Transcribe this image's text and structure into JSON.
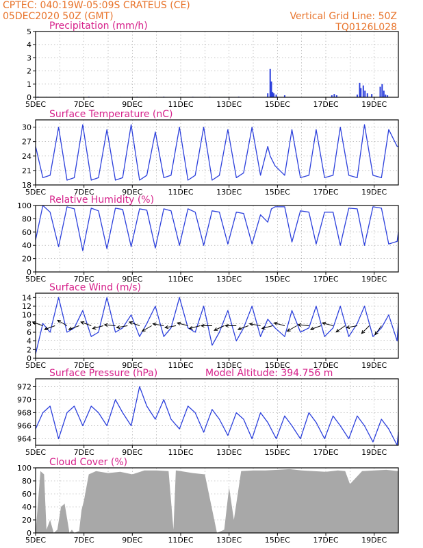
{
  "header": {
    "line1_left": "CPTEC:   040:19W-05:09S   CRATEUS (CE)",
    "line2_left": "05DEC2020 50Z (GMT)",
    "line1_right": "Vertical Grid Line: 50Z",
    "line2_right": "TQ0126L028"
  },
  "colors": {
    "header": "#e8732a",
    "titles": "#d6208a",
    "series": "#2b3fdc",
    "cloud": "#a8a8a8",
    "arrows": "#000000"
  },
  "chart_data": [
    {
      "type": "bar",
      "title": "Precipitation (mm/h)",
      "ylim": [
        0,
        5
      ],
      "yticks": [
        0,
        1,
        2,
        3,
        4,
        5
      ],
      "x_days": [
        0.1,
        0.45,
        1.0,
        1.6,
        2.2,
        2.8,
        3.5,
        4.2,
        4.7,
        5.3,
        5.9,
        6.5,
        7.2,
        7.8,
        8.4,
        9.0,
        9.6,
        9.7,
        9.75,
        9.8,
        9.85,
        9.95,
        10.3,
        12.25,
        12.35,
        12.45,
        13.3,
        13.4,
        13.45,
        13.55,
        13.62,
        13.72,
        13.9,
        14.25,
        14.33,
        14.4,
        14.47,
        14.55
      ],
      "values": [
        0.05,
        0.03,
        0.03,
        0.02,
        0.05,
        0.04,
        0.03,
        0.04,
        0.03,
        0.05,
        0.03,
        0.04,
        0.04,
        0.03,
        0.05,
        0.04,
        0.3,
        2.15,
        1.2,
        0.4,
        0.3,
        0.2,
        0.15,
        0.15,
        0.25,
        0.15,
        0.2,
        1.1,
        0.7,
        0.9,
        0.5,
        0.3,
        0.25,
        0.8,
        1.0,
        0.5,
        0.2,
        0.15
      ]
    },
    {
      "type": "line",
      "title": "Surface Temperature (nC)",
      "ylim": [
        18,
        31.5
      ],
      "yticks": [
        18,
        21,
        24,
        27,
        30
      ],
      "x_days": [
        0.0,
        0.3,
        0.6,
        0.95,
        1.3,
        1.6,
        1.95,
        2.3,
        2.6,
        2.95,
        3.3,
        3.6,
        3.95,
        4.3,
        4.6,
        4.95,
        5.3,
        5.6,
        5.95,
        6.3,
        6.6,
        6.95,
        7.3,
        7.6,
        7.95,
        8.3,
        8.6,
        8.95,
        9.3,
        9.6,
        9.7,
        9.9,
        10.3,
        10.6,
        10.95,
        11.3,
        11.6,
        11.95,
        12.3,
        12.6,
        12.95,
        13.3,
        13.6,
        13.95,
        14.3,
        14.6,
        14.95,
        15.0
      ],
      "values": [
        26,
        19.5,
        20,
        30,
        19,
        19.5,
        30.5,
        19,
        19.5,
        29.5,
        19,
        19.5,
        30.5,
        19,
        20,
        29,
        19.5,
        20,
        30,
        19,
        20,
        30,
        19,
        20,
        29.5,
        19.5,
        20.5,
        30,
        20,
        26,
        24,
        22,
        20,
        29.5,
        19.5,
        20,
        29.5,
        19.5,
        20,
        30,
        20,
        19.5,
        30.5,
        20,
        19.5,
        29.5,
        26,
        26
      ]
    },
    {
      "type": "line",
      "title": "Relative Humidity (%)",
      "ylim": [
        0,
        100
      ],
      "yticks": [
        0,
        20,
        40,
        60,
        80,
        100
      ],
      "x_days": [
        0.0,
        0.3,
        0.6,
        0.95,
        1.3,
        1.6,
        1.95,
        2.3,
        2.6,
        2.95,
        3.3,
        3.6,
        3.95,
        4.3,
        4.6,
        4.95,
        5.3,
        5.6,
        5.95,
        6.3,
        6.6,
        6.95,
        7.3,
        7.6,
        7.95,
        8.3,
        8.6,
        8.95,
        9.3,
        9.6,
        9.75,
        9.9,
        10.3,
        10.6,
        10.95,
        11.3,
        11.6,
        11.95,
        12.3,
        12.6,
        12.95,
        13.3,
        13.6,
        13.95,
        14.3,
        14.6,
        14.95,
        15.0
      ],
      "values": [
        48,
        100,
        90,
        38,
        98,
        95,
        32,
        96,
        92,
        35,
        96,
        94,
        38,
        95,
        93,
        36,
        95,
        92,
        40,
        95,
        90,
        40,
        92,
        90,
        42,
        90,
        88,
        42,
        86,
        75,
        95,
        98,
        98,
        45,
        92,
        90,
        42,
        90,
        90,
        40,
        96,
        95,
        40,
        98,
        96,
        42,
        46,
        60
      ]
    },
    {
      "type": "line",
      "title": "Surface Wind (m/s)",
      "ylim": [
        0,
        15
      ],
      "yticks": [
        0,
        2,
        4,
        6,
        8,
        10,
        12,
        14
      ],
      "x_days": [
        0.0,
        0.3,
        0.6,
        0.95,
        1.3,
        1.6,
        1.95,
        2.3,
        2.6,
        2.95,
        3.3,
        3.6,
        3.95,
        4.3,
        4.6,
        4.95,
        5.3,
        5.6,
        5.95,
        6.3,
        6.6,
        6.95,
        7.3,
        7.6,
        7.95,
        8.3,
        8.6,
        8.95,
        9.3,
        9.6,
        9.9,
        10.3,
        10.6,
        10.95,
        11.3,
        11.6,
        11.95,
        12.3,
        12.6,
        12.95,
        13.3,
        13.6,
        13.95,
        14.3,
        14.6,
        14.95,
        15.0
      ],
      "values": [
        1,
        8,
        6,
        14,
        6,
        7,
        11,
        5,
        6,
        14,
        6,
        7,
        10,
        5,
        8,
        12,
        5,
        7,
        14,
        7,
        6,
        12,
        3,
        6,
        11,
        4,
        7,
        12,
        5,
        9,
        7,
        5,
        11,
        6,
        7,
        12,
        5,
        7,
        12,
        5,
        8,
        12,
        5,
        7,
        10,
        4,
        8
      ]
    },
    {
      "type": "line",
      "title": "Surface Pressure (hPa)",
      "annotation": "Model Altitude: 394.756  m",
      "ylim": [
        963,
        973.2
      ],
      "yticks": [
        964,
        966,
        968,
        970,
        972
      ],
      "x_days": [
        0.0,
        0.3,
        0.6,
        0.95,
        1.3,
        1.6,
        1.95,
        2.3,
        2.6,
        2.95,
        3.3,
        3.6,
        3.95,
        4.3,
        4.6,
        4.95,
        5.3,
        5.6,
        5.95,
        6.3,
        6.6,
        6.95,
        7.3,
        7.6,
        7.95,
        8.3,
        8.6,
        8.95,
        9.3,
        9.6,
        9.95,
        10.3,
        10.6,
        10.95,
        11.3,
        11.6,
        11.95,
        12.3,
        12.6,
        12.95,
        13.3,
        13.6,
        13.95,
        14.3,
        14.6,
        14.95,
        15.0
      ],
      "values": [
        965.5,
        968,
        969,
        964,
        968,
        969,
        966,
        969,
        968,
        966,
        970,
        968,
        966,
        972,
        969,
        967,
        970,
        967,
        965.5,
        969,
        968,
        965,
        968.5,
        967,
        964.5,
        968,
        967,
        964,
        968,
        966.5,
        964,
        967.5,
        966,
        964,
        968,
        966.5,
        964,
        967.5,
        966,
        964,
        967.5,
        966,
        963.5,
        967,
        965.5,
        963,
        965
      ]
    },
    {
      "type": "area",
      "title": "Cloud Cover (%)",
      "ylim": [
        0,
        100
      ],
      "yticks": [
        0,
        20,
        40,
        60,
        80,
        100
      ],
      "x_days": [
        0.0,
        0.2,
        0.35,
        0.45,
        0.6,
        0.75,
        0.9,
        1.05,
        1.2,
        1.4,
        1.5,
        1.6,
        1.8,
        1.9,
        2.0,
        2.2,
        2.5,
        3.0,
        3.5,
        4.0,
        4.5,
        5.0,
        5.5,
        5.7,
        5.8,
        6.0,
        6.5,
        7.0,
        7.5,
        7.8,
        8.0,
        8.2,
        8.5,
        9.0,
        9.5,
        10.0,
        10.5,
        11.0,
        11.5,
        12.0,
        12.5,
        12.8,
        13.0,
        13.5,
        14.0,
        14.5,
        15.0
      ],
      "values": [
        0,
        95,
        90,
        5,
        20,
        0,
        5,
        40,
        45,
        0,
        5,
        0,
        3,
        35,
        50,
        90,
        95,
        92,
        94,
        90,
        96,
        96,
        95,
        5,
        96,
        95,
        92,
        90,
        0,
        5,
        70,
        20,
        95,
        96,
        96,
        97,
        98,
        96,
        95,
        94,
        96,
        95,
        75,
        95,
        96,
        97,
        95
      ]
    },
    {
      "type": "table",
      "title": "Wind direction vectors",
      "x_days": [
        0.3,
        0.8,
        1.3,
        1.8,
        2.3,
        2.8,
        3.3,
        3.8,
        4.3,
        4.8,
        5.3,
        5.8,
        6.3,
        6.8,
        7.3,
        7.8,
        8.3,
        8.8,
        9.3,
        9.8,
        10.3,
        10.8,
        11.3,
        11.8,
        12.3,
        12.8,
        13.3,
        13.8,
        14.3
      ],
      "dir_deg": [
        160,
        200,
        150,
        200,
        160,
        195,
        175,
        190,
        160,
        210,
        170,
        190,
        165,
        195,
        180,
        205,
        180,
        200,
        170,
        195,
        165,
        210,
        175,
        200,
        165,
        215,
        190,
        225,
        235
      ]
    }
  ],
  "x_axis": {
    "day_labels": [
      "5DEC",
      "7DEC",
      "9DEC",
      "11DEC",
      "13DEC",
      "15DEC",
      "17DEC",
      "19DEC"
    ],
    "day_values": [
      0,
      2,
      4,
      6,
      8,
      10,
      12,
      14
    ]
  }
}
